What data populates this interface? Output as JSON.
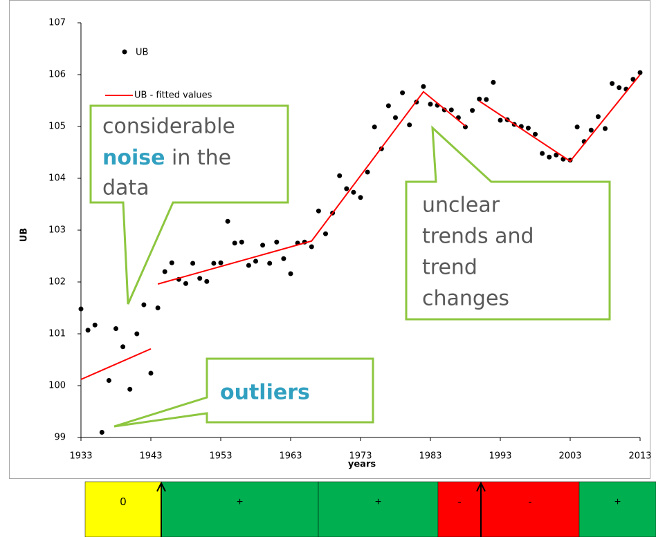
{
  "chart_data": {
    "type": "scatter",
    "xlabel": "years",
    "ylabel": "UB",
    "xlim": [
      1933,
      2013
    ],
    "xticks": [
      1933,
      1943,
      1953,
      1963,
      1973,
      1983,
      1993,
      2003,
      2013
    ],
    "ylim": [
      99,
      107
    ],
    "yticks": [
      99,
      100,
      101,
      102,
      103,
      104,
      105,
      106,
      107
    ],
    "series": [
      {
        "name": "UB",
        "color": "#000000",
        "x": [
          1933,
          1934,
          1935,
          1936,
          1937,
          1938,
          1939,
          1940,
          1941,
          1942,
          1943,
          1944,
          1945,
          1946,
          1947,
          1948,
          1949,
          1950,
          1951,
          1952,
          1953,
          1954,
          1955,
          1956,
          1957,
          1958,
          1959,
          1960,
          1961,
          1962,
          1963,
          1964,
          1965,
          1966,
          1967,
          1968,
          1969,
          1970,
          1971,
          1972,
          1973,
          1974,
          1975,
          1976,
          1977,
          1978,
          1979,
          1980,
          1981,
          1982,
          1983,
          1984,
          1985,
          1986,
          1987,
          1988,
          1989,
          1990,
          1991,
          1992,
          1993,
          1994,
          1995,
          1996,
          1997,
          1998,
          1999,
          2000,
          2001,
          2002,
          2003,
          2004,
          2005,
          2006,
          2007,
          2008,
          2009,
          2010,
          2011,
          2012,
          2013
        ],
        "values": [
          101.48,
          101.07,
          101.17,
          99.1,
          100.1,
          101.1,
          100.75,
          99.93,
          101.0,
          101.56,
          100.24,
          101.5,
          102.2,
          102.37,
          102.05,
          101.97,
          102.36,
          102.07,
          102.01,
          102.36,
          102.37,
          103.17,
          102.75,
          102.77,
          102.32,
          102.4,
          102.71,
          102.36,
          102.77,
          102.45,
          102.16,
          102.75,
          102.77,
          102.68,
          103.37,
          102.93,
          103.33,
          104.05,
          103.8,
          103.73,
          103.63,
          104.12,
          104.99,
          104.57,
          105.4,
          105.17,
          105.65,
          105.03,
          105.47,
          105.77,
          105.43,
          105.41,
          105.32,
          105.32,
          105.17,
          104.99,
          105.31,
          105.53,
          105.52,
          105.85,
          105.12,
          105.13,
          105.04,
          105.0,
          104.97,
          104.85,
          104.48,
          104.41,
          104.45,
          104.37,
          104.35,
          104.99,
          104.71,
          104.93,
          105.19,
          104.96,
          105.83,
          105.75,
          105.72,
          105.91,
          106.04
        ]
      },
      {
        "name": "UB - fitted values",
        "color": "#ff0000",
        "segments": [
          {
            "x": [
              1933,
              1943
            ],
            "values": [
              100.12,
              100.71
            ]
          },
          {
            "x": [
              1944,
              1966,
              1982,
              1988
            ],
            "values": [
              101.96,
              102.79,
              105.67,
              105.01
            ]
          },
          {
            "x": [
              1990,
              2003,
              2013
            ],
            "values": [
              105.49,
              104.33,
              106.0
            ]
          }
        ]
      }
    ],
    "annotations": [
      {
        "lines": [
          [
            "considerable"
          ],
          [
            "noise",
            "in the"
          ],
          [
            "data"
          ]
        ]
      },
      {
        "lines": [
          [
            "outliers"
          ]
        ]
      },
      {
        "lines": [
          [
            "unclear"
          ],
          [
            "trends and"
          ],
          [
            "trend"
          ],
          [
            "changes"
          ]
        ]
      }
    ]
  },
  "strip": [
    {
      "label": "0",
      "color": "#ffff00"
    },
    {
      "label": "+",
      "color": "#00b050"
    },
    {
      "label": "+",
      "color": "#00b050"
    },
    {
      "label": "-",
      "color": "#ff0000"
    },
    {
      "label": "-",
      "color": "#ff0000"
    },
    {
      "label": "+",
      "color": "#00b050"
    }
  ]
}
